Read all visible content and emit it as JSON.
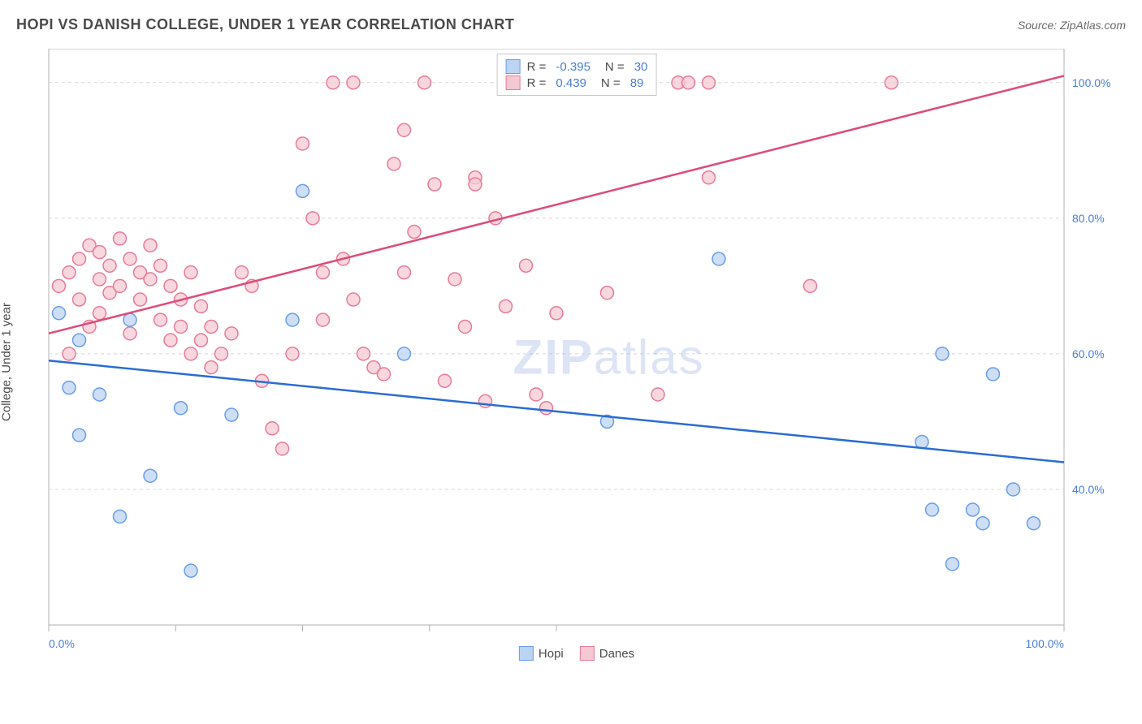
{
  "title": "HOPI VS DANISH COLLEGE, UNDER 1 YEAR CORRELATION CHART",
  "source": "Source: ZipAtlas.com",
  "y_axis_label": "College, Under 1 year",
  "watermark": {
    "part1": "ZIP",
    "part2": "atlas"
  },
  "chart": {
    "type": "scatter",
    "xlim": [
      0,
      100
    ],
    "ylim": [
      20,
      105
    ],
    "x_ticks": [
      0,
      12.5,
      25,
      37.5,
      50,
      100
    ],
    "x_tick_labels": {
      "0": "0.0%",
      "100": "100.0%"
    },
    "y_ticks": [
      40,
      60,
      80,
      100
    ],
    "y_tick_labels": {
      "40": "40.0%",
      "60": "60.0%",
      "80": "80.0%",
      "100": "100.0%"
    },
    "grid_color": "#d8d8d8",
    "border_color": "#b0b0b0",
    "background_color": "#ffffff",
    "tick_label_color": "#4a7dd6",
    "tick_label_fontsize": 14,
    "marker_radius": 8,
    "marker_stroke_width": 1.5,
    "line_stroke_width": 2.5
  },
  "series": {
    "hopi": {
      "label": "Hopi",
      "R": "-0.395",
      "N": "30",
      "marker_fill": "#bcd3f2",
      "marker_stroke": "#6a9de8",
      "line_color": "#2a6cd4",
      "trend": {
        "x1": 0,
        "y1": 59,
        "x2": 100,
        "y2": 44
      },
      "points": [
        [
          1,
          66
        ],
        [
          2,
          55
        ],
        [
          3,
          48
        ],
        [
          3,
          62
        ],
        [
          5,
          54
        ],
        [
          7,
          36
        ],
        [
          8,
          65
        ],
        [
          10,
          42
        ],
        [
          13,
          52
        ],
        [
          14,
          28
        ],
        [
          18,
          51
        ],
        [
          24,
          65
        ],
        [
          25,
          84
        ],
        [
          35,
          60
        ],
        [
          55,
          50
        ],
        [
          66,
          74
        ],
        [
          86,
          47
        ],
        [
          87,
          37
        ],
        [
          88,
          60
        ],
        [
          89,
          29
        ],
        [
          91,
          37
        ],
        [
          92,
          35
        ],
        [
          93,
          57
        ],
        [
          95,
          40
        ],
        [
          97,
          35
        ]
      ]
    },
    "danes": {
      "label": "Danes",
      "R": "0.439",
      "N": "89",
      "marker_fill": "#f5c9d3",
      "marker_stroke": "#e87a99",
      "line_color": "#db4d7a",
      "trend": {
        "x1": 0,
        "y1": 63,
        "x2": 100,
        "y2": 101
      },
      "points": [
        [
          1,
          70
        ],
        [
          2,
          72
        ],
        [
          2,
          60
        ],
        [
          3,
          74
        ],
        [
          3,
          68
        ],
        [
          4,
          76
        ],
        [
          4,
          64
        ],
        [
          5,
          75
        ],
        [
          5,
          71
        ],
        [
          5,
          66
        ],
        [
          6,
          73
        ],
        [
          6,
          69
        ],
        [
          7,
          77
        ],
        [
          7,
          70
        ],
        [
          8,
          74
        ],
        [
          8,
          63
        ],
        [
          9,
          72
        ],
        [
          9,
          68
        ],
        [
          10,
          71
        ],
        [
          10,
          76
        ],
        [
          11,
          65
        ],
        [
          11,
          73
        ],
        [
          12,
          70
        ],
        [
          12,
          62
        ],
        [
          13,
          64
        ],
        [
          13,
          68
        ],
        [
          14,
          60
        ],
        [
          14,
          72
        ],
        [
          15,
          67
        ],
        [
          15,
          62
        ],
        [
          16,
          64
        ],
        [
          16,
          58
        ],
        [
          17,
          60
        ],
        [
          18,
          63
        ],
        [
          19,
          72
        ],
        [
          20,
          70
        ],
        [
          21,
          56
        ],
        [
          22,
          49
        ],
        [
          23,
          46
        ],
        [
          24,
          60
        ],
        [
          25,
          91
        ],
        [
          26,
          80
        ],
        [
          27,
          72
        ],
        [
          27,
          65
        ],
        [
          28,
          100
        ],
        [
          29,
          74
        ],
        [
          30,
          100
        ],
        [
          30,
          68
        ],
        [
          31,
          60
        ],
        [
          32,
          58
        ],
        [
          33,
          57
        ],
        [
          34,
          88
        ],
        [
          35,
          93
        ],
        [
          35,
          72
        ],
        [
          36,
          78
        ],
        [
          37,
          100
        ],
        [
          38,
          85
        ],
        [
          39,
          56
        ],
        [
          40,
          71
        ],
        [
          41,
          64
        ],
        [
          42,
          86
        ],
        [
          42,
          85
        ],
        [
          43,
          53
        ],
        [
          44,
          80
        ],
        [
          45,
          100
        ],
        [
          45,
          67
        ],
        [
          47,
          73
        ],
        [
          48,
          54
        ],
        [
          49,
          52
        ],
        [
          50,
          66
        ],
        [
          55,
          69
        ],
        [
          60,
          54
        ],
        [
          62,
          100
        ],
        [
          63,
          100
        ],
        [
          65,
          100
        ],
        [
          65,
          86
        ],
        [
          75,
          70
        ],
        [
          83,
          100
        ]
      ]
    }
  },
  "legend_labels": {
    "R": "R =",
    "N": "N ="
  }
}
